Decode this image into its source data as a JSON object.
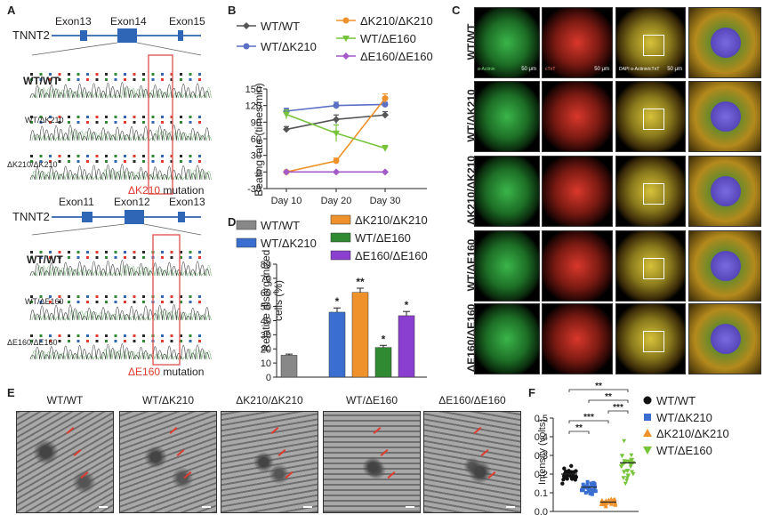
{
  "panel_labels": {
    "a": "A",
    "b": "B",
    "c": "C",
    "d": "D",
    "e": "E",
    "f": "F"
  },
  "panelA": {
    "top": {
      "gene": "TNNT2",
      "exons": [
        "Exon13",
        "Exon14",
        "Exon15"
      ],
      "genotypes": [
        "WT/WT",
        "WT/ΔK210",
        "ΔK210/ΔK210"
      ],
      "mutation_prefix": "ΔK210",
      "mutation_suffix": " mutation"
    },
    "bottom": {
      "gene": "TNNT2",
      "exons": [
        "Exon11",
        "Exon12",
        "Exon13"
      ],
      "genotypes": [
        "WT/WT",
        "WT/ΔE160",
        "ΔE160/ΔE160"
      ],
      "mutation_prefix": "ΔE160",
      "mutation_suffix": " mutation"
    }
  },
  "colors": {
    "wtwt": "#555555",
    "wtk210": "#5b6fc4",
    "k210k210": "#f0922b",
    "wte160": "#77c43a",
    "e160e160": "#a35bc9",
    "wtk210_bar": "#3a6fd1",
    "wte160_bar": "#2f8a32",
    "e160e160_bar": "#8b3fd0",
    "wtwt_bar": "#888888",
    "red": "#e03b2e"
  },
  "chart_data": [
    {
      "type": "line",
      "panel": "B",
      "ylabel": "Beating rate (times/min)",
      "categories": [
        "Day 10",
        "Day 20",
        "Day 30"
      ],
      "ylim": [
        -30,
        150
      ],
      "yticks": [
        -30,
        0,
        30,
        60,
        90,
        120,
        150
      ],
      "series": [
        {
          "name": "WT/WT",
          "values": [
            77,
            95,
            103
          ],
          "err": [
            5,
            8,
            6
          ]
        },
        {
          "name": "WT/ΔK210",
          "values": [
            110,
            120,
            122
          ],
          "err": [
            5,
            6,
            4
          ]
        },
        {
          "name": "ΔK210/ΔK210",
          "values": [
            0,
            20,
            133
          ],
          "err": [
            0,
            5,
            8
          ]
        },
        {
          "name": "WT/ΔE160",
          "values": [
            104,
            70,
            43
          ],
          "err": [
            8,
            15,
            5
          ]
        },
        {
          "name": "ΔE160/ΔE160",
          "values": [
            0,
            0,
            0
          ],
          "err": [
            0,
            0,
            0
          ]
        }
      ]
    },
    {
      "type": "bar",
      "panel": "D",
      "ylabel": "Relative disorganized cells (%)",
      "ylim": [
        0,
        80
      ],
      "yticks": [
        0,
        10,
        20,
        30,
        40,
        50,
        60,
        70,
        80
      ],
      "categories": [
        "WT/WT",
        "WT/ΔK210",
        "ΔK210/ΔK210",
        "WT/ΔE160",
        "ΔE160/ΔE160"
      ],
      "values": [
        15.5,
        46,
        60,
        21,
        43.5
      ],
      "err": [
        0.8,
        3,
        3,
        1.5,
        3
      ],
      "sig": [
        "",
        "*",
        "**",
        "*",
        "*"
      ]
    },
    {
      "type": "scatter",
      "panel": "F",
      "ylabel": "Intensity (volts)",
      "ylim": [
        0,
        0.5
      ],
      "yticks": [
        0.0,
        0.1,
        0.2,
        0.3,
        0.4,
        0.5
      ],
      "categories": [
        "WT/WT",
        "WT/ΔK210",
        "ΔK210/ΔK210",
        "WT/ΔE160"
      ],
      "means": [
        0.2,
        0.13,
        0.05,
        0.26
      ],
      "sds": [
        0.03,
        0.025,
        0.015,
        0.07
      ],
      "markers": [
        "circle",
        "square",
        "triangle",
        "triangle-down"
      ],
      "brackets": [
        {
          "from": 0,
          "to": 3,
          "label": "**"
        },
        {
          "from": 1,
          "to": 3,
          "label": "**"
        },
        {
          "from": 2,
          "to": 3,
          "label": "***"
        },
        {
          "from": 0,
          "to": 2,
          "label": "***"
        },
        {
          "from": 0,
          "to": 1,
          "label": "**"
        }
      ]
    }
  ],
  "panelC": {
    "rows": [
      "WT/WT",
      "WT/ΔK210",
      "ΔK210/ΔK210",
      "WT/ΔE160",
      "ΔE160/ΔE160"
    ],
    "stain_labels": {
      "actinin": "α-Actinin",
      "cx43": "cTnT",
      "merge": "DAPI α-Actinin/cTnT"
    },
    "scale": "50 μm"
  },
  "panelE": {
    "titles": [
      "WT/WT",
      "WT/ΔK210",
      "ΔK210/ΔK210",
      "WT/ΔE160",
      "ΔE160/ΔE160"
    ]
  }
}
